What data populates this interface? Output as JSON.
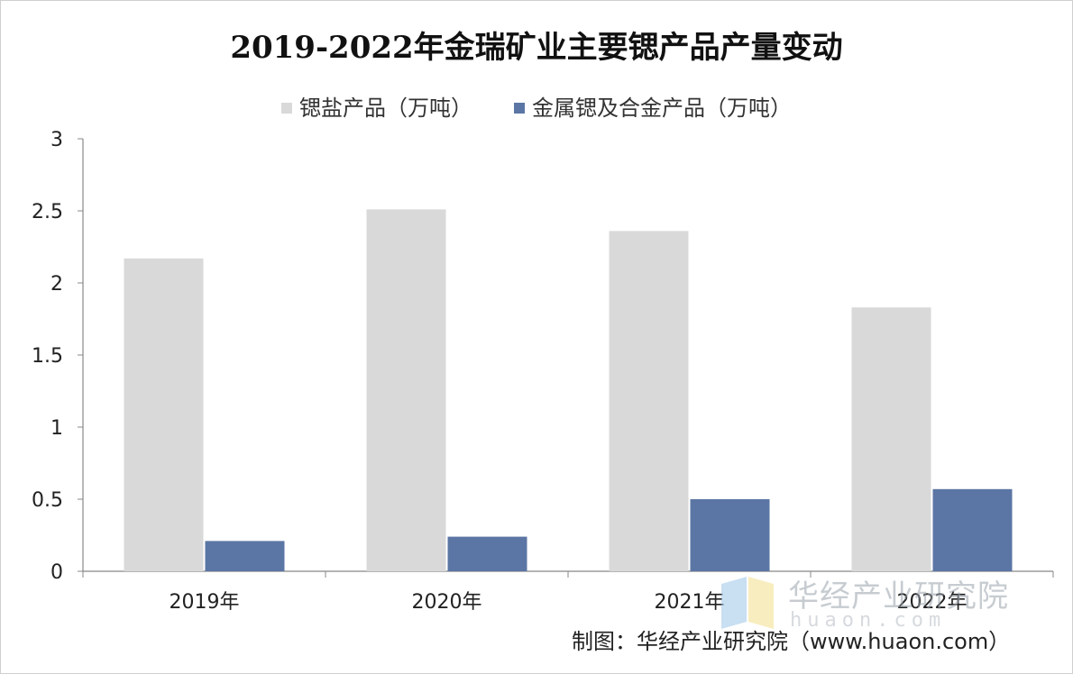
{
  "chart_data": {
    "type": "bar",
    "title": "2019-2022年金瑞矿业主要锶产品产量变动",
    "categories": [
      "2019年",
      "2020年",
      "2021年",
      "2022年"
    ],
    "series": [
      {
        "name": "锶盐产品（万吨）",
        "values": [
          2.17,
          2.51,
          2.36,
          1.83
        ],
        "color": "#d9d9d9"
      },
      {
        "name": "金属锶及合金产品（万吨）",
        "values": [
          0.21,
          0.24,
          0.5,
          0.57
        ],
        "color": "#5b76a4"
      }
    ],
    "ylim": [
      0,
      3
    ],
    "yticks": [
      "0",
      "0.5",
      "1",
      "1.5",
      "2",
      "2.5",
      "3"
    ],
    "xlabel": "",
    "ylabel": "",
    "legend_position": "top",
    "grid": false
  },
  "credit": "制图：华经产业研究院（www.huaon.com）",
  "watermark": {
    "name": "华经产业研究院",
    "url": "huaon.com"
  }
}
